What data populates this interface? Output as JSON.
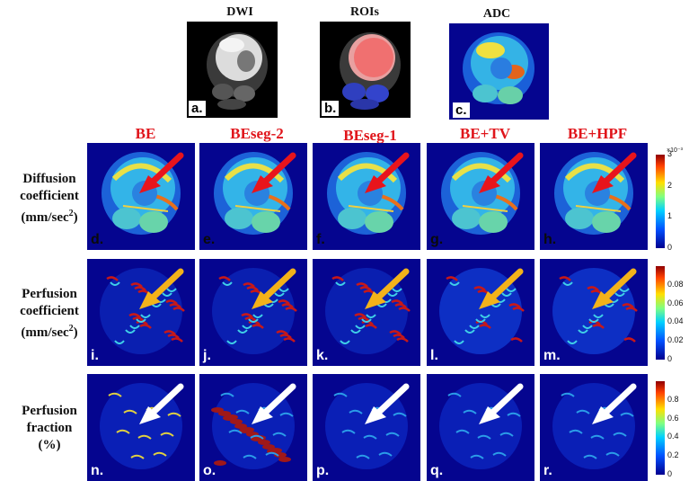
{
  "top_panels": [
    {
      "title": "DWI",
      "label": "a."
    },
    {
      "title": "ROIs",
      "label": "b."
    },
    {
      "title": "ADC",
      "label": "c."
    }
  ],
  "columns": [
    "BE",
    "BEseg-2",
    "BEseg-1",
    "BE+TV",
    "BE+HPF"
  ],
  "rows": [
    {
      "label_line1": "Diffusion",
      "label_line2": "coefficient",
      "label_line3": "(mm/sec",
      "label_sup": "2",
      "label_close": ")",
      "panels": [
        "d.",
        "e.",
        "f.",
        "g.",
        "h."
      ],
      "colorbar": {
        "exponent": "×10⁻³",
        "ticks": [
          "3",
          "2",
          "1",
          "0"
        ]
      }
    },
    {
      "label_line1": "Perfusion",
      "label_line2": "coefficient",
      "label_line3": "(mm/sec",
      "label_sup": "2",
      "label_close": ")",
      "panels": [
        "i.",
        "j.",
        "k.",
        "l.",
        "m."
      ],
      "colorbar": {
        "exponent": "",
        "ticks": [
          "0.08",
          "0.06",
          "0.04",
          "0.02",
          "0"
        ]
      }
    },
    {
      "label_line1": "Perfusion",
      "label_line2": "fraction",
      "label_line3": "(%)",
      "label_sup": "",
      "label_close": "",
      "panels": [
        "n.",
        "o.",
        "p.",
        "q.",
        "r."
      ],
      "colorbar": {
        "exponent": "",
        "ticks": [
          "0.8",
          "0.6",
          "0.4",
          "0.2",
          "0"
        ]
      }
    }
  ],
  "arrow_colors": {
    "row1": "#e8141c",
    "row2": "#f3b21a",
    "row3": "#ffffff"
  }
}
